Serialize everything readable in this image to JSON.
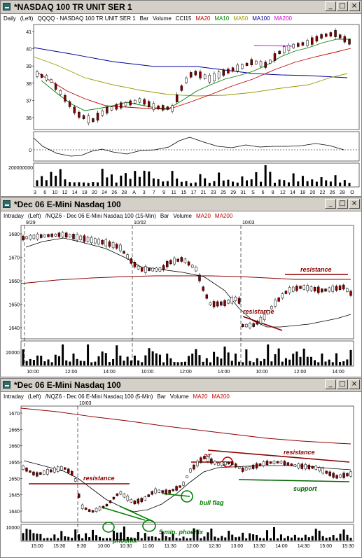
{
  "windows": [
    {
      "title": "*NASDAQ 100 TR UNIT SER 1",
      "info": {
        "period": "Daily",
        "scale": "(Left)",
        "symbol": "QQQQ - NASDAQ 100 TR UNIT SER 1",
        "type": "Bar",
        "volume": "Volume",
        "indicator": "CCI15",
        "ma1": "MA20",
        "ma2": "MA10",
        "ma3": "MA50",
        "ma4": "MA100",
        "ma5": "MA200"
      },
      "colors": {
        "ma20": "#c00000",
        "ma10": "#008000",
        "ma50": "#999900",
        "ma100": "#000099",
        "ma200": "#cc00cc"
      },
      "price_ticks": [
        "41",
        "40",
        "39",
        "38",
        "37",
        "36"
      ],
      "cci_tick": "0",
      "vol_tick": "200000000",
      "date_ticks": [
        "3",
        "6",
        "10",
        "12",
        "14",
        "18",
        "20",
        "24",
        "26",
        "28",
        "A",
        "3",
        "7",
        "9",
        "11",
        "15",
        "17",
        "21",
        "23",
        "25",
        "29",
        "31",
        "S",
        "6",
        "8",
        "12",
        "14",
        "18",
        "20",
        "22",
        "26",
        "28",
        "O"
      ]
    },
    {
      "title": "*Dec 06  E-Mini Nasdaq 100",
      "info": {
        "period": "Intraday",
        "scale": "(Left)",
        "symbol": "/NQZ6 - Dec 06  E-Mini Nasdaq 100 (15-Min)",
        "type": "Bar",
        "volume": "Volume",
        "ma1": "MA20",
        "ma2": "MA200"
      },
      "date_marks": [
        "9/29",
        "10/02",
        "10/03"
      ],
      "price_ticks": [
        "1680",
        "1670",
        "1660",
        "1650",
        "1640"
      ],
      "vol_tick": "20000",
      "time_ticks": [
        "10:00",
        "12:00",
        "14:00",
        "10:00",
        "12:00",
        "14:00",
        "10:00",
        "12:00",
        "14:00"
      ],
      "annotations": [
        "resistance",
        "resistance"
      ]
    },
    {
      "title": "*Dec 06  E-Mini Nasdaq 100",
      "info": {
        "period": "Intraday",
        "scale": "(Left)",
        "symbol": "/NQZ6 - Dec 06  E-Mini Nasdaq 100 (5-Min)",
        "type": "Bar",
        "volume": "Volume",
        "ma1": "MA20",
        "ma2": "MA200"
      },
      "date_marks": [
        "10/03"
      ],
      "price_ticks": [
        "1670",
        "1665",
        "1660",
        "1655",
        "1650",
        "1645",
        "1640"
      ],
      "vol_tick": "10000",
      "time_ticks": [
        "15:00",
        "15:30",
        "9:30",
        "10:00",
        "10:30",
        "11:00",
        "11:30",
        "12:00",
        "12:30",
        "13:00",
        "13:30",
        "14:00",
        "14:30",
        "15:00",
        "15:30"
      ],
      "annotations": {
        "resistance_left": "resistance",
        "resistance_right": "resistance",
        "support": "support",
        "double_top": "2T",
        "bull_flag": "bull flag",
        "phoenix": "phoenix",
        "phoenix5": "5 min. phoenix"
      }
    }
  ],
  "window_buttons": {
    "minimize": "_",
    "maximize": "□",
    "close": "×"
  }
}
